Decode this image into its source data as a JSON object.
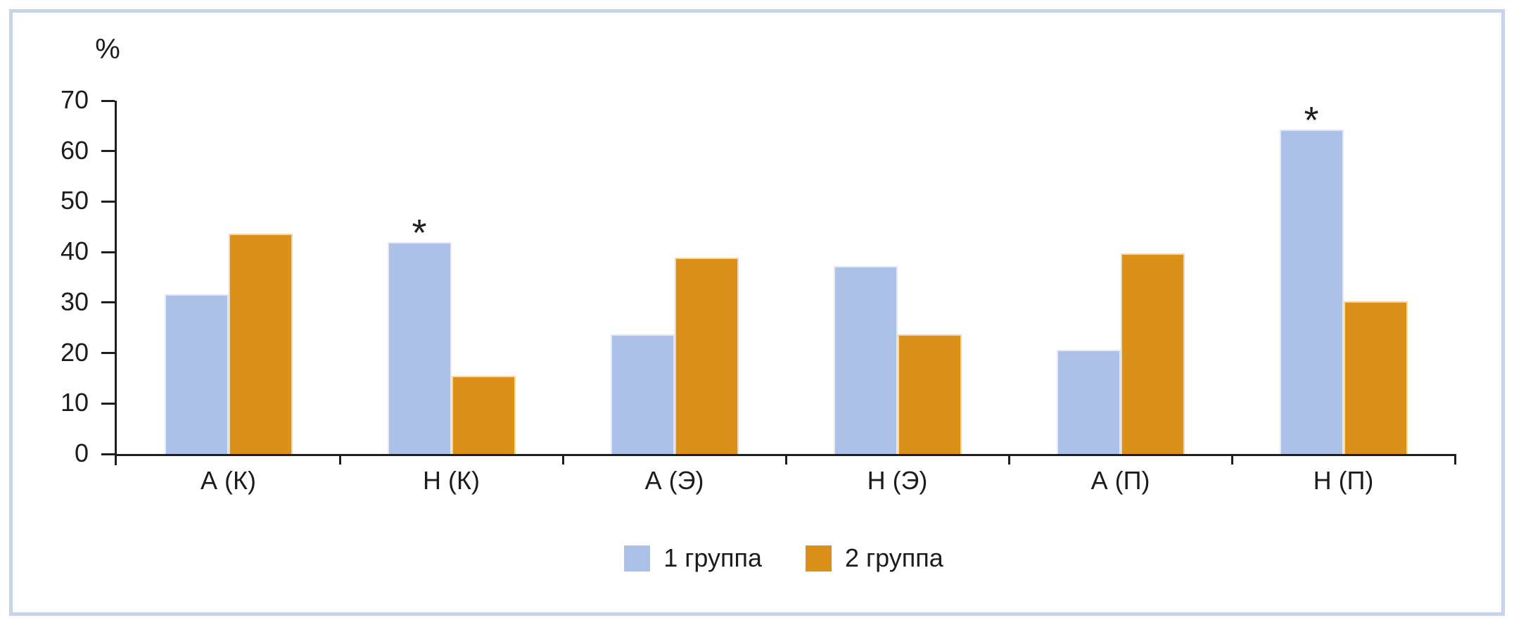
{
  "chart_data": {
    "type": "bar",
    "title": "",
    "ylabel": "%",
    "xlabel": "",
    "ylim": [
      0,
      70
    ],
    "yticks": [
      0,
      10,
      20,
      30,
      40,
      50,
      60,
      70
    ],
    "grid": false,
    "legend_position": "bottom-center",
    "categories": [
      "А (К)",
      "Н (К)",
      "А (Э)",
      "Н (Э)",
      "А (П)",
      "Н (П)"
    ],
    "series": [
      {
        "name": "1 группа",
        "color": "#abc1e7",
        "values": [
          31.7,
          42.0,
          23.7,
          37.3,
          20.7,
          64.3
        ]
      },
      {
        "name": "2 группа",
        "color": "#db9119",
        "values": [
          43.7,
          15.5,
          38.9,
          23.7,
          39.7,
          30.2
        ]
      }
    ],
    "annotations": [
      {
        "text": "*",
        "category": "Н (К)",
        "category_index": 1,
        "series": "1 группа",
        "series_index": 0
      },
      {
        "text": "*",
        "category": "Н (П)",
        "category_index": 5,
        "series": "1 группа",
        "series_index": 0
      }
    ],
    "frame_color": "#c7d3ec",
    "axis_color": "#1f1f1f"
  }
}
